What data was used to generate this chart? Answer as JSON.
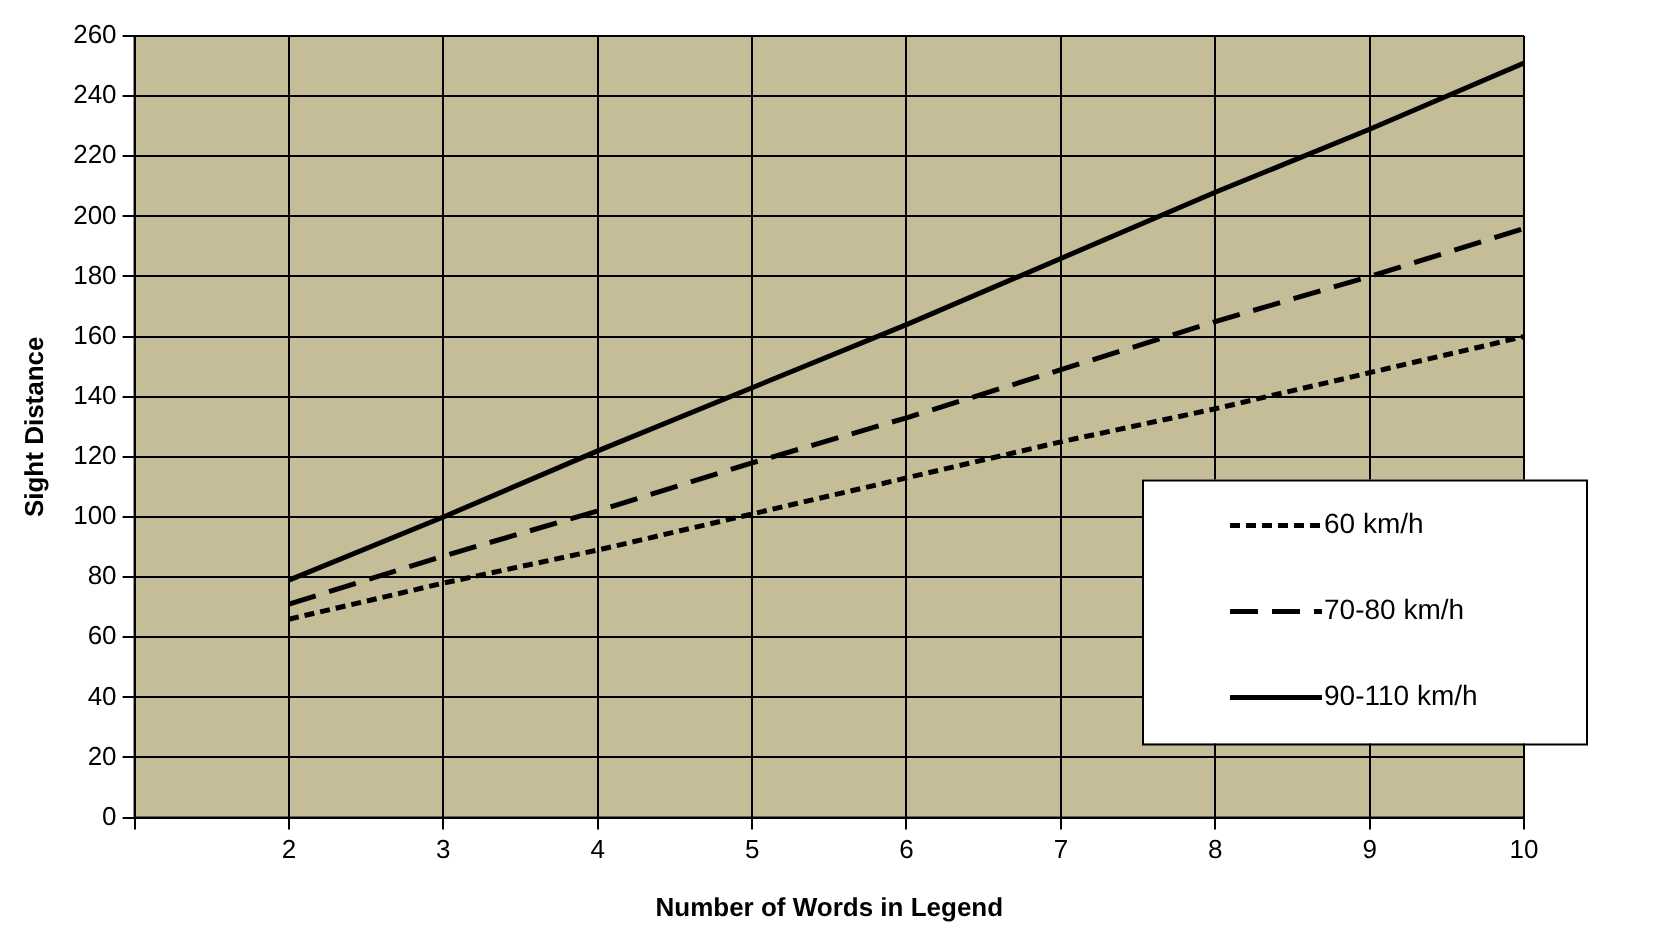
{
  "chart_data": {
    "type": "line",
    "xlabel": "Number of Words in Legend",
    "ylabel": "Sight Distance",
    "x": [
      2,
      3,
      4,
      5,
      6,
      7,
      8,
      9,
      10
    ],
    "series": [
      {
        "name": "60 km/h",
        "color": "#000000",
        "line_style": "dotted",
        "values": [
          66,
          78,
          89,
          101,
          113,
          125,
          136,
          148,
          160
        ]
      },
      {
        "name": "70-80 km/h",
        "color": "#000000",
        "line_style": "dashed",
        "values": [
          71,
          87,
          102,
          118,
          133,
          149,
          165,
          180,
          196
        ]
      },
      {
        "name": "90-110 km/h",
        "color": "#000000",
        "line_style": "solid",
        "values": [
          79,
          100,
          122,
          143,
          164,
          186,
          208,
          229,
          251
        ]
      }
    ],
    "xlim": [
      1,
      10
    ],
    "xticks": [
      {
        "value": 1,
        "label": null
      },
      2,
      3,
      4,
      5,
      6,
      7,
      8,
      9,
      10
    ],
    "ylim": [
      0,
      260
    ],
    "yticks": [
      0,
      20,
      40,
      60,
      80,
      100,
      120,
      140,
      160,
      180,
      200,
      220,
      240,
      260
    ],
    "grid": true,
    "legend": "bottom right",
    "marker": "none"
  }
}
